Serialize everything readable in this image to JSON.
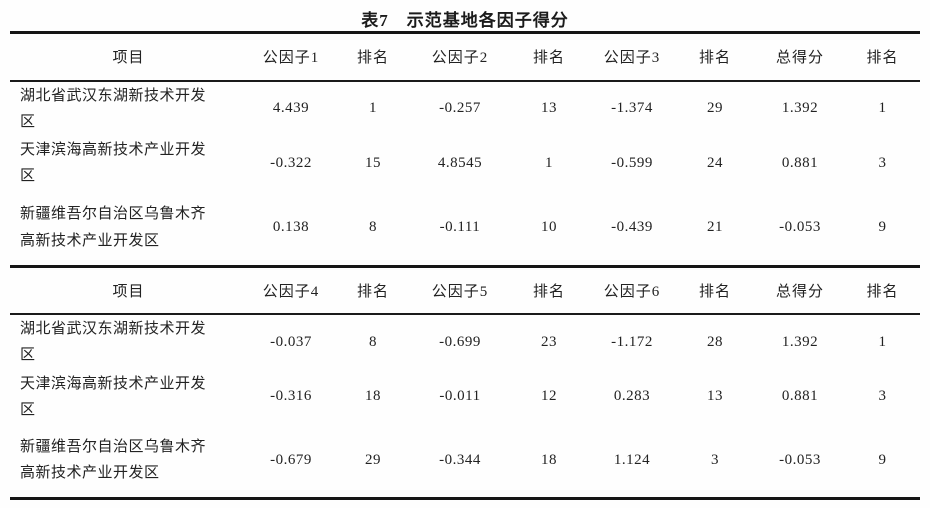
{
  "title": "表7　示范基地各因子得分",
  "sections": [
    {
      "columns": [
        "项目",
        "公因子1",
        "排名",
        "公因子2",
        "排名",
        "公因子3",
        "排名",
        "总得分",
        "排名"
      ],
      "rows": [
        {
          "label": "湖北省武汉东湖新技术开发区",
          "values": [
            "4.439",
            "1",
            "-0.257",
            "13",
            "-1.374",
            "29",
            "1.392",
            "1"
          ]
        },
        {
          "label": "天津滨海高新技术产业开发区",
          "values": [
            "-0.322",
            "15",
            "4.8545",
            "1",
            "-0.599",
            "24",
            "0.881",
            "3"
          ]
        },
        {
          "label": "新疆维吾尔自治区乌鲁木齐高新技术产业开发区",
          "values": [
            "0.138",
            "8",
            "-0.111",
            "10",
            "-0.439",
            "21",
            "-0.053",
            "9"
          ]
        }
      ]
    },
    {
      "columns": [
        "项目",
        "公因子4",
        "排名",
        "公因子5",
        "排名",
        "公因子6",
        "排名",
        "总得分",
        "排名"
      ],
      "rows": [
        {
          "label": "湖北省武汉东湖新技术开发区",
          "values": [
            "-0.037",
            "8",
            "-0.699",
            "23",
            "-1.172",
            "28",
            "1.392",
            "1"
          ]
        },
        {
          "label": "天津滨海高新技术产业开发区",
          "values": [
            "-0.316",
            "18",
            "-0.011",
            "12",
            "0.283",
            "13",
            "0.881",
            "3"
          ]
        },
        {
          "label": "新疆维吾尔自治区乌鲁木齐高新技术产业开发区",
          "values": [
            "-0.679",
            "29",
            "-0.344",
            "18",
            "1.124",
            "3",
            "-0.053",
            "9"
          ]
        }
      ]
    }
  ]
}
